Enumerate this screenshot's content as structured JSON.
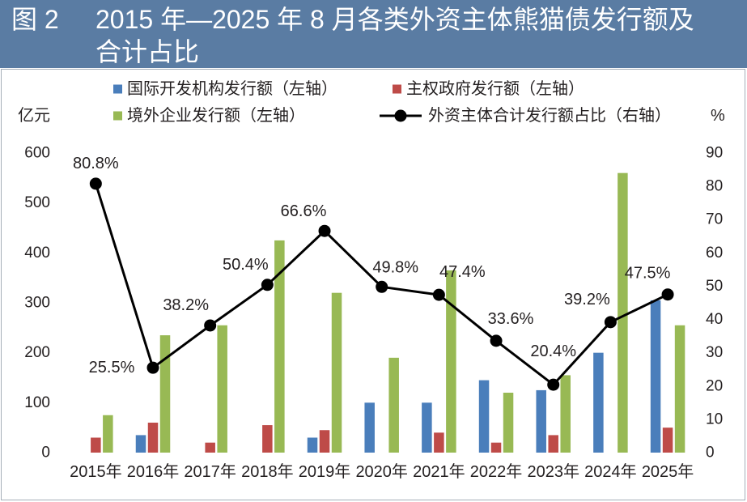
{
  "theme": {
    "banner_color": "#5a7ca3",
    "panel_border_color": "#a5aeb8",
    "text_color": "#231f20"
  },
  "chart_data": {
    "type": "bar",
    "figure_label": "图 2",
    "title_lines": [
      "2015 年—2025 年 8 月各类外资主体熊猫债发行额及",
      "合计占比"
    ],
    "categories": [
      "2015年",
      "2016年",
      "2017年",
      "2018年",
      "2019年",
      "2020年",
      "2021年",
      "2022年",
      "2023年",
      "2024年",
      "2025年"
    ],
    "ylabel": "亿元",
    "y2label": "%",
    "ylim": [
      0,
      600
    ],
    "y2lim": [
      0,
      90
    ],
    "yticks": [
      0,
      100,
      200,
      300,
      400,
      500,
      600
    ],
    "y2ticks": [
      0,
      10,
      20,
      30,
      40,
      50,
      60,
      70,
      80,
      90
    ],
    "grid": false,
    "legend": "top",
    "series": [
      {
        "name": "国际开发机构发行额（左轴）",
        "kind": "bar",
        "axis": "left",
        "color": "#4a7ebb",
        "values": [
          0,
          35,
          0,
          0,
          30,
          100,
          100,
          145,
          125,
          200,
          305
        ]
      },
      {
        "name": "主权政府发行额（左轴）",
        "kind": "bar",
        "axis": "left",
        "color": "#be4b48",
        "values": [
          30,
          60,
          20,
          55,
          45,
          0,
          40,
          20,
          35,
          0,
          50
        ]
      },
      {
        "name": "境外企业发行额（左轴）",
        "kind": "bar",
        "axis": "left",
        "color": "#98b954",
        "values": [
          75,
          235,
          255,
          425,
          320,
          190,
          365,
          120,
          155,
          560,
          255
        ]
      },
      {
        "name": "外资主体合计发行额占比（右轴）",
        "kind": "line",
        "axis": "right",
        "color": "#000000",
        "values": [
          80.8,
          25.5,
          38.2,
          50.4,
          66.6,
          49.8,
          47.4,
          33.6,
          20.4,
          39.2,
          47.5
        ],
        "data_labels": [
          "80.8%",
          "25.5%",
          "38.2%",
          "50.4%",
          "66.6%",
          "49.8%",
          "47.4%",
          "33.6%",
          "20.4%",
          "39.2%",
          "47.5%"
        ]
      }
    ]
  }
}
